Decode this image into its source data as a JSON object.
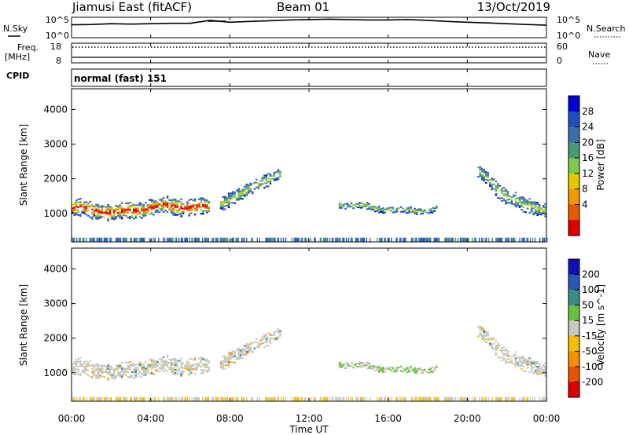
{
  "header": {
    "title": "Jiamusi East (fitACF)",
    "beam": "Beam 01",
    "date": "13/Oct/2019"
  },
  "sky_panel": {
    "left_label": "N.Sky",
    "right_label": "N.Search",
    "left_ticks": [
      "10^5",
      "10^0"
    ],
    "right_ticks": [
      "10^5",
      "10^0"
    ]
  },
  "freq_panel": {
    "left_label_1": "Freq.",
    "left_label_2": "[MHz]",
    "left_ticks": [
      "18",
      "8"
    ],
    "right_label": "Nave",
    "right_ticks": [
      "60",
      "0"
    ]
  },
  "cpid_panel": {
    "label": "CPID",
    "mode": "normal (fast) 151"
  },
  "x_axis": {
    "label": "Time UT",
    "ticks": [
      "00:00",
      "04:00",
      "08:00",
      "12:00",
      "16:00",
      "20:00",
      "00:00"
    ]
  },
  "power_panel": {
    "ylabel": "Slant Range [km]",
    "yticks": [
      "4000",
      "3000",
      "2000",
      "1000"
    ],
    "colorbar_label": "Power [dB]",
    "colorbar_ticks": [
      "28",
      "24",
      "20",
      "16",
      "12",
      "8",
      "4"
    ],
    "colorbar_colors": [
      "#0000d8",
      "#1f4fc0",
      "#3c6fa8",
      "#4a9a78",
      "#7ec850",
      "#e6c800",
      "#f29a00",
      "#e85a00",
      "#e00000"
    ]
  },
  "velocity_panel": {
    "ylabel": "Slant Range [km]",
    "yticks": [
      "4000",
      "3000",
      "2000",
      "1000"
    ],
    "colorbar_label": "Velocity [m s^-1]",
    "colorbar_ticks": [
      "200",
      "100",
      "50",
      "15",
      "-15",
      "-50",
      "-100",
      "-200"
    ],
    "colorbar_colors": [
      "#1010b0",
      "#2858b8",
      "#3a8a88",
      "#6cc040",
      "#c8c8c0",
      "#f2c000",
      "#f29000",
      "#e85400",
      "#e00000"
    ]
  },
  "chart_data": {
    "type": "heatmap",
    "x_range_hours": [
      0,
      24
    ],
    "y_range_km": [
      180,
      4600
    ],
    "nsky": [
      [
        0,
        3.2
      ],
      [
        1,
        3.3
      ],
      [
        2,
        3.5
      ],
      [
        3,
        3.4
      ],
      [
        4,
        3.5
      ],
      [
        5,
        3.6
      ],
      [
        6,
        3.6
      ],
      [
        7,
        4.4
      ],
      [
        8,
        3.9
      ],
      [
        9,
        4.1
      ],
      [
        10,
        4.3
      ],
      [
        11,
        4.5
      ],
      [
        12,
        4.6
      ],
      [
        13,
        4.7
      ],
      [
        14,
        4.6
      ],
      [
        15,
        4.5
      ],
      [
        16,
        4.5
      ],
      [
        17,
        4.6
      ],
      [
        18,
        4.4
      ],
      [
        19,
        4.1
      ],
      [
        20,
        3.9
      ],
      [
        21,
        3.7
      ],
      [
        22,
        3.5
      ],
      [
        23,
        3.3
      ],
      [
        24,
        3.1
      ]
    ],
    "frequency_mhz": 10.8,
    "nave": 48,
    "scatter_regions": [
      {
        "name": "band1",
        "t": [
          0,
          6.9
        ],
        "center_km": [
          1150,
          1000,
          1200,
          1150
        ],
        "halfwidth_km": 220
      },
      {
        "name": "band2",
        "t": [
          7.5,
          10.5
        ],
        "center_km": [
          1300,
          1500,
          1900,
          2100
        ],
        "halfwidth_km": 170
      },
      {
        "name": "band3",
        "t": [
          13.5,
          18.5
        ],
        "center_km": [
          1250,
          1150,
          1050,
          1100
        ],
        "halfwidth_km": 80
      },
      {
        "name": "band4",
        "t": [
          20.5,
          24
        ],
        "center_km": [
          2200,
          1600,
          1200,
          1100
        ],
        "halfwidth_km": 200
      }
    ]
  }
}
